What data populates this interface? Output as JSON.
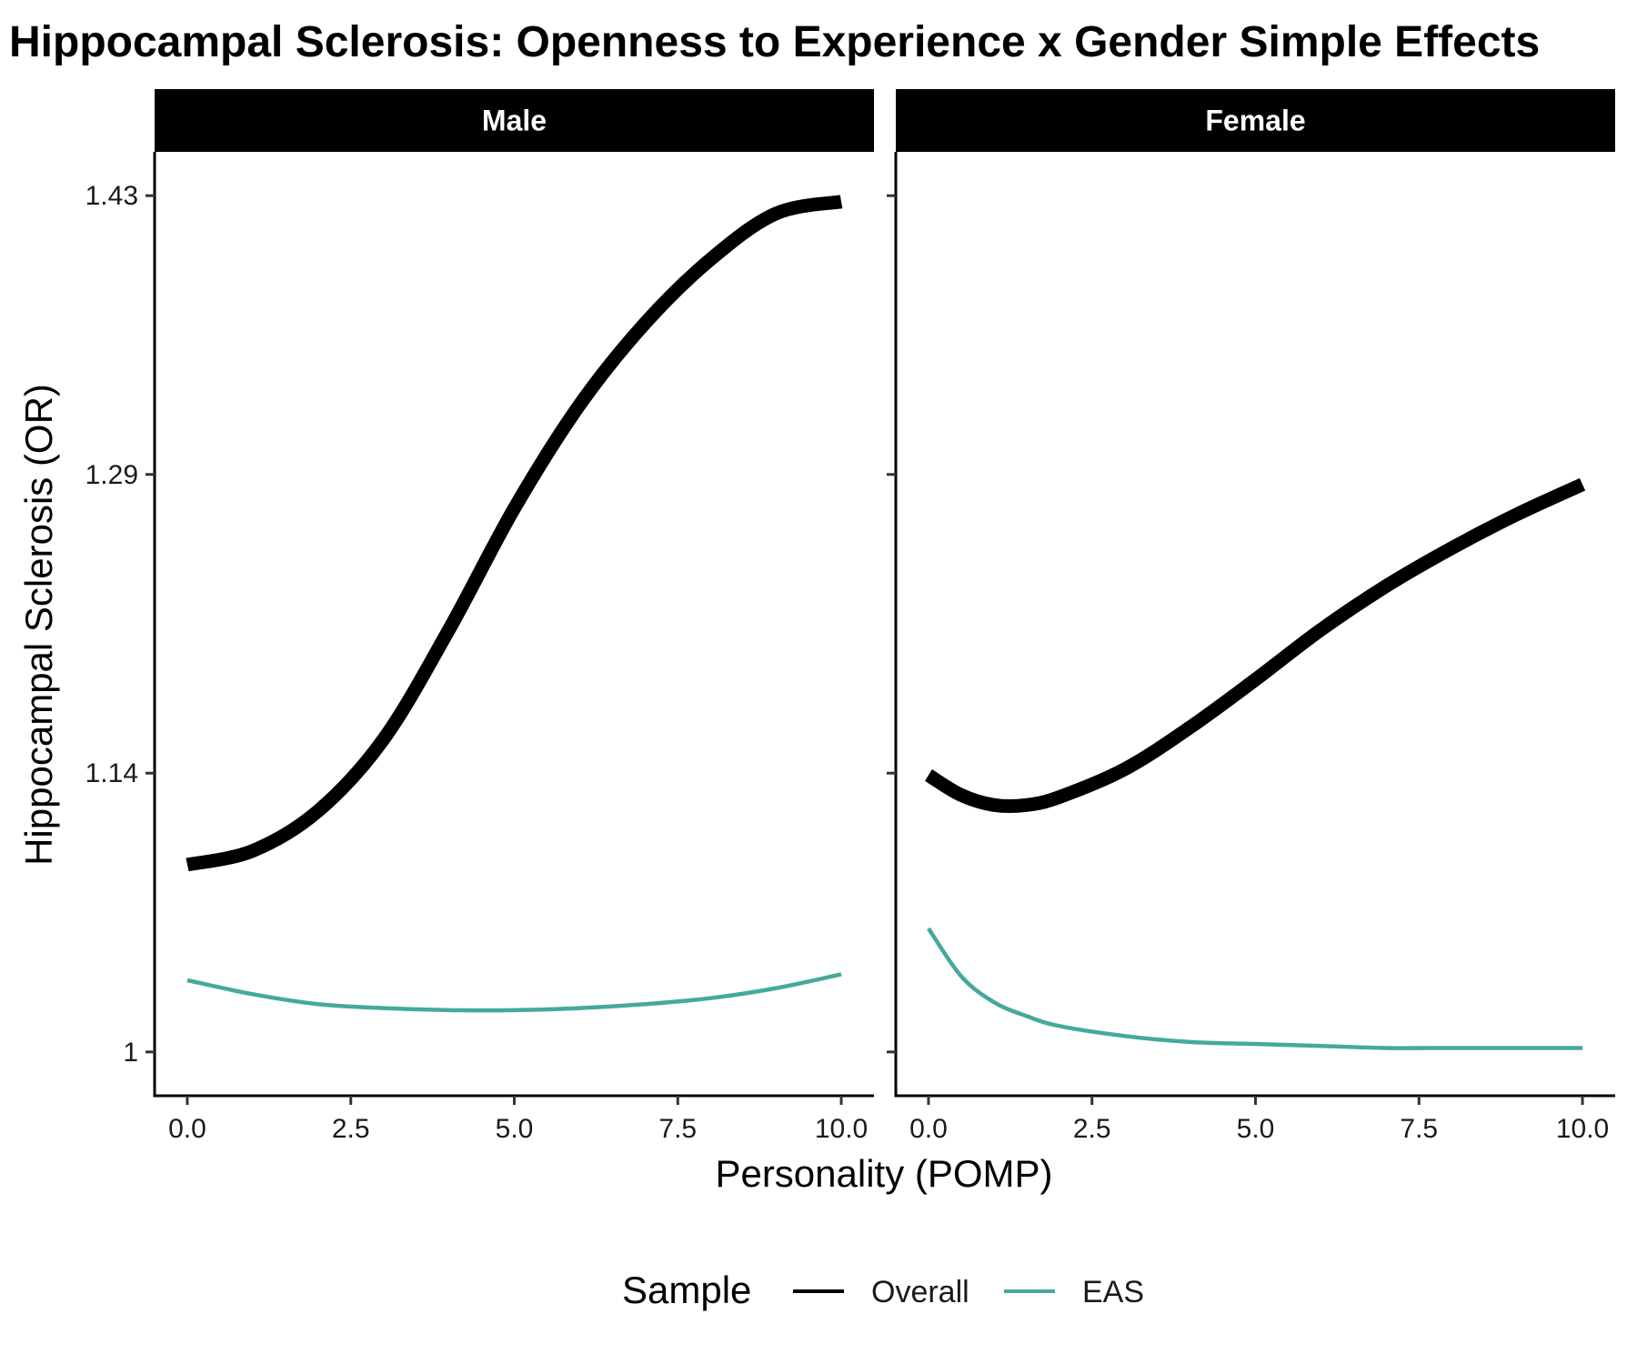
{
  "chart_data": {
    "type": "line",
    "title": "Hippocampal Sclerosis: Openness to Experience x Gender Simple Effects",
    "xlabel": "Personality (POMP)",
    "ylabel": "Hippocampal Sclerosis (OR)",
    "xlim": [
      -0.5,
      10.5
    ],
    "ylim": [
      0.978,
      1.452
    ],
    "x_ticks": [
      0,
      2.5,
      5,
      7.5,
      10
    ],
    "x_tick_labels": [
      "0.0",
      "2.5",
      "5.0",
      "7.5",
      "10.0"
    ],
    "y_ticks": [
      1.0,
      1.14,
      1.29,
      1.43
    ],
    "y_tick_labels": [
      "1",
      "1.14",
      "1.29",
      "1.43"
    ],
    "grid": false,
    "legend": {
      "title": "Sample",
      "position": "bottom",
      "entries": [
        {
          "name": "Overall",
          "color": "#000000"
        },
        {
          "name": "EAS",
          "color": "#45A99B"
        }
      ]
    },
    "facets": [
      {
        "label": "Male",
        "series": [
          {
            "name": "Overall",
            "color": "#000000",
            "x": [
              0,
              1,
              2,
              3,
              4,
              5,
              6,
              7,
              8,
              9,
              10
            ],
            "y": [
              1.094,
              1.101,
              1.121,
              1.157,
              1.212,
              1.273,
              1.325,
              1.366,
              1.398,
              1.421,
              1.427
            ]
          },
          {
            "name": "EAS",
            "color": "#45A99B",
            "x": [
              0,
              1,
              2,
              3,
              4,
              5,
              6,
              7,
              8,
              9,
              10
            ],
            "y": [
              1.036,
              1.029,
              1.024,
              1.022,
              1.021,
              1.021,
              1.022,
              1.024,
              1.027,
              1.032,
              1.039
            ]
          }
        ]
      },
      {
        "label": "Female",
        "series": [
          {
            "name": "Overall",
            "color": "#000000",
            "x": [
              0,
              0.5,
              1,
              1.5,
              2,
              3,
              4,
              5,
              6,
              7,
              8,
              9,
              10
            ],
            "y": [
              1.139,
              1.129,
              1.124,
              1.124,
              1.128,
              1.142,
              1.163,
              1.187,
              1.212,
              1.234,
              1.253,
              1.27,
              1.285
            ]
          },
          {
            "name": "EAS",
            "color": "#45A99B",
            "x": [
              0,
              0.5,
              1,
              1.5,
              2,
              3,
              4,
              5,
              6,
              7,
              8,
              9,
              10
            ],
            "y": [
              1.062,
              1.038,
              1.025,
              1.018,
              1.013,
              1.008,
              1.005,
              1.004,
              1.003,
              1.002,
              1.002,
              1.002,
              1.002
            ]
          }
        ]
      }
    ]
  }
}
